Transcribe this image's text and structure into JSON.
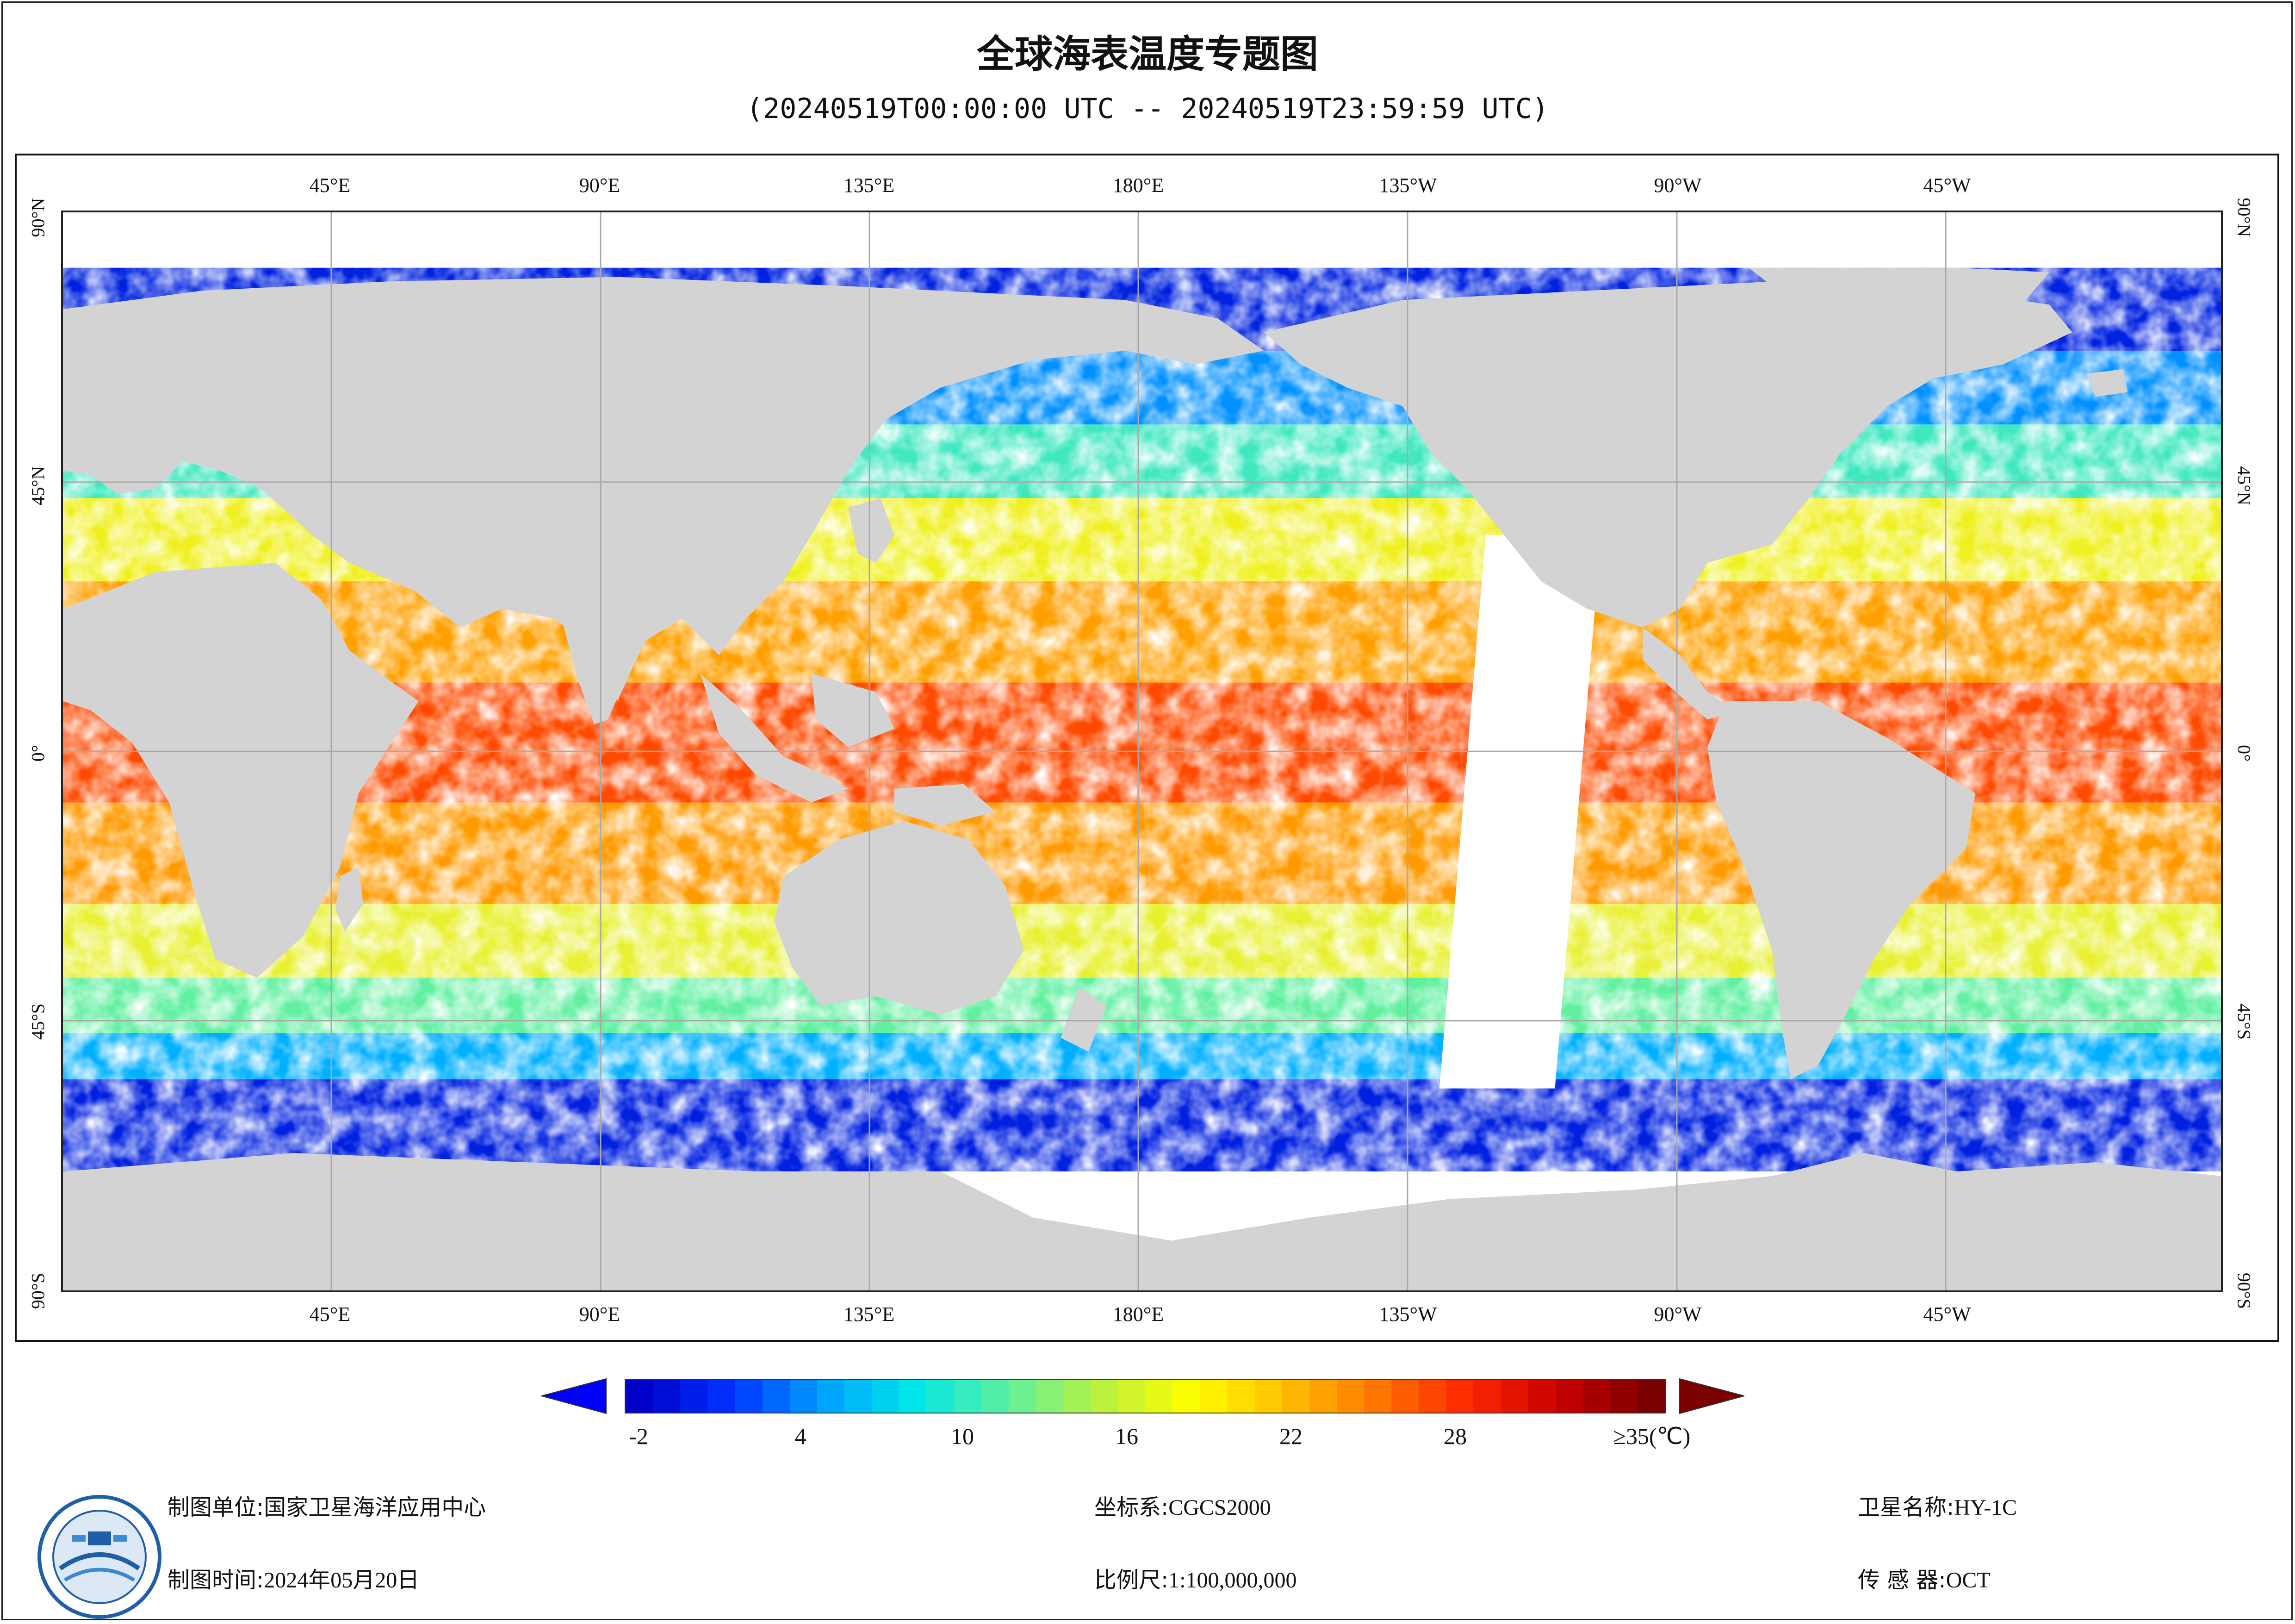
{
  "title": "全球海表温度专题图",
  "subtitle": "(20240519T00:00:00 UTC -- 20240519T23:59:59 UTC)",
  "map": {
    "lon_labels": [
      "45°E",
      "90°E",
      "135°E",
      "180°E",
      "135°W",
      "90°W",
      "45°W"
    ],
    "lat_labels": [
      "90°N",
      "45°N",
      "0°",
      "45°S",
      "90°S"
    ],
    "land_color": "#d3d3d4",
    "grid_color": "#a9a9a9"
  },
  "legend": {
    "ticks": [
      "-2",
      "4",
      "10",
      "16",
      "22",
      "28",
      "≥35(℃)"
    ],
    "colormap": [
      "#0000c8",
      "#0033ff",
      "#00a0ff",
      "#00e8e8",
      "#60f0a0",
      "#b8f040",
      "#ffff00",
      "#ffc000",
      "#ff7800",
      "#ff2800",
      "#c80000",
      "#780000"
    ],
    "under_color": "#0000ff",
    "over_color": "#7a0000"
  },
  "footer": {
    "unit_label": "制图单位:",
    "unit_value": "国家卫星海洋应用中心",
    "time_label": "制图时间:",
    "time_value": "2024年05月20日",
    "crs_label": "坐标系:",
    "crs_value": "CGCS2000",
    "scale_label": "比例尺:",
    "scale_value": "1:100,000,000",
    "satellite_label": "卫星名称:",
    "satellite_value": "HY-1C",
    "sensor_label": "传 感 器:",
    "sensor_value": "OCT"
  }
}
